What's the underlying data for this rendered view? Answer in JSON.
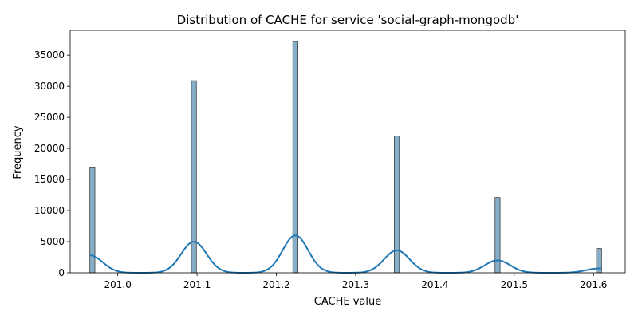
{
  "chart_data": {
    "type": "bar",
    "title": "Distribution of CACHE for service 'social-graph-mongodb'",
    "xlabel": "CACHE value",
    "ylabel": "Frequency",
    "xlim": [
      200.94,
      201.64
    ],
    "ylim": [
      0,
      39000
    ],
    "xticks": [
      201.0,
      201.1,
      201.2,
      201.3,
      201.4,
      201.5,
      201.6
    ],
    "xtick_labels": [
      "201.0",
      "201.1",
      "201.2",
      "201.3",
      "201.4",
      "201.5",
      "201.6"
    ],
    "yticks": [
      0,
      5000,
      10000,
      15000,
      20000,
      25000,
      30000,
      35000
    ],
    "ytick_labels": [
      "0",
      "5000",
      "10000",
      "15000",
      "20000",
      "25000",
      "30000",
      "35000"
    ],
    "bin_width": 0.0064,
    "bars": [
      {
        "x": 200.968,
        "value": 16900
      },
      {
        "x": 201.096,
        "value": 30900
      },
      {
        "x": 201.224,
        "value": 37200
      },
      {
        "x": 201.352,
        "value": 22000
      },
      {
        "x": 201.479,
        "value": 12100
      },
      {
        "x": 201.607,
        "value": 3900
      }
    ],
    "kde": {
      "x_range": [
        200.965,
        201.61
      ],
      "peaks": [
        {
          "x": 200.965,
          "height": 2800,
          "sigma": 0.016
        },
        {
          "x": 201.096,
          "height": 5000,
          "sigma": 0.016
        },
        {
          "x": 201.224,
          "height": 6000,
          "sigma": 0.016
        },
        {
          "x": 201.352,
          "height": 3600,
          "sigma": 0.016
        },
        {
          "x": 201.479,
          "height": 2000,
          "sigma": 0.016
        },
        {
          "x": 201.607,
          "height": 700,
          "sigma": 0.016
        }
      ]
    },
    "grid": false,
    "colors": {
      "bar_fill": "#87aec9",
      "bar_edge": "#3c3c3c",
      "kde_line": "#1f77b4",
      "axes": "#000000"
    }
  }
}
